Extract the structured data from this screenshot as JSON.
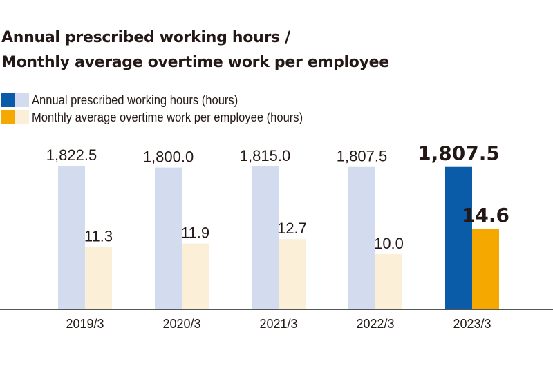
{
  "chart_data": {
    "type": "bar",
    "title": "Annual prescribed working hours /\nMonthly average overtime work per employee",
    "title_lines": [
      "Annual prescribed working hours /",
      "Monthly average overtime work per employee"
    ],
    "categories": [
      "2019/3",
      "2020/3",
      "2021/3",
      "2022/3",
      "2023/3"
    ],
    "series": [
      {
        "name": "Annual prescribed working hours (hours)",
        "values": [
          1822.5,
          1800.0,
          1815.0,
          1807.5,
          1807.5
        ],
        "labels": [
          "1,822.5",
          "1,800.0",
          "1,815.0",
          "1,807.5",
          "1,807.5"
        ],
        "color": "#d3dcef",
        "highlight_color": "#0a5ca8"
      },
      {
        "name": "Monthly average overtime work per employee (hours)",
        "values": [
          11.3,
          11.9,
          12.7,
          10.0,
          14.6
        ],
        "labels": [
          "11.3",
          "11.9",
          "12.7",
          "10.0",
          "14.6"
        ],
        "color": "#fcefd8",
        "highlight_color": "#f5a800"
      }
    ],
    "highlight_index": 4,
    "legend_position": "top-left",
    "grid": false,
    "xlabel": "",
    "ylabel": ""
  }
}
